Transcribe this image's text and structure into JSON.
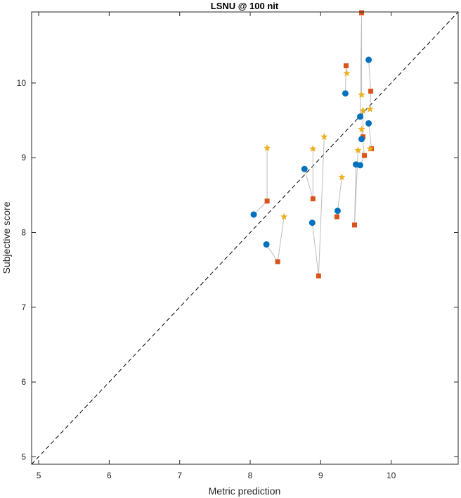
{
  "chart_data": {
    "type": "scatter",
    "title": "LSNU @ 100 nit",
    "xlabel": "Metric prediction",
    "ylabel": "Subjective score",
    "xlim": [
      4.9,
      10.95
    ],
    "ylim": [
      4.9,
      10.95
    ],
    "xticks": [
      5,
      6,
      7,
      8,
      9,
      10
    ],
    "yticks": [
      5,
      6,
      7,
      8,
      9,
      10
    ],
    "grid": false,
    "identity_line": true,
    "colors": {
      "circle": "#0072BD",
      "square": "#D95319",
      "star": "#EDB120",
      "connector": "#BDBDBD",
      "identity": "#000000"
    },
    "groups": [
      {
        "circle": [
          8.05,
          8.24
        ],
        "square": [
          8.24,
          8.42
        ],
        "star": [
          8.24,
          9.13
        ]
      },
      {
        "circle": [
          8.23,
          7.84
        ],
        "square": [
          8.39,
          7.61
        ],
        "star": [
          8.48,
          8.21
        ]
      },
      {
        "circle": [
          8.77,
          8.85
        ],
        "square": [
          8.89,
          8.45
        ],
        "star": [
          8.89,
          9.12
        ]
      },
      {
        "circle": [
          8.88,
          8.13
        ],
        "square": [
          8.97,
          7.42
        ],
        "star": [
          9.05,
          9.28
        ]
      },
      {
        "circle": [
          9.24,
          8.29
        ],
        "square": [
          9.23,
          8.21
        ],
        "star": [
          9.3,
          8.74
        ]
      },
      {
        "circle": [
          9.35,
          9.86
        ],
        "square": [
          9.36,
          10.23
        ],
        "star": [
          9.37,
          10.13
        ]
      },
      {
        "circle": [
          9.5,
          8.91
        ],
        "square": [
          9.48,
          8.1
        ],
        "star": [
          9.53,
          9.1
        ]
      },
      {
        "circle": [
          9.56,
          8.9
        ],
        "square": [
          9.62,
          9.03
        ],
        "star": [
          9.58,
          9.38
        ]
      },
      {
        "circle": [
          9.56,
          9.55
        ],
        "square": [
          9.58,
          10.94
        ],
        "star": [
          9.58,
          9.84
        ]
      },
      {
        "circle": [
          9.58,
          9.25
        ],
        "square": [
          9.6,
          9.28
        ],
        "star": [
          9.6,
          9.63
        ]
      },
      {
        "circle": [
          9.68,
          10.31
        ],
        "square": [
          9.71,
          9.89
        ],
        "star": [
          9.7,
          9.65
        ]
      },
      {
        "circle": [
          9.68,
          9.46
        ],
        "square": [
          9.72,
          9.12
        ],
        "star": [
          9.7,
          9.12
        ]
      }
    ]
  }
}
